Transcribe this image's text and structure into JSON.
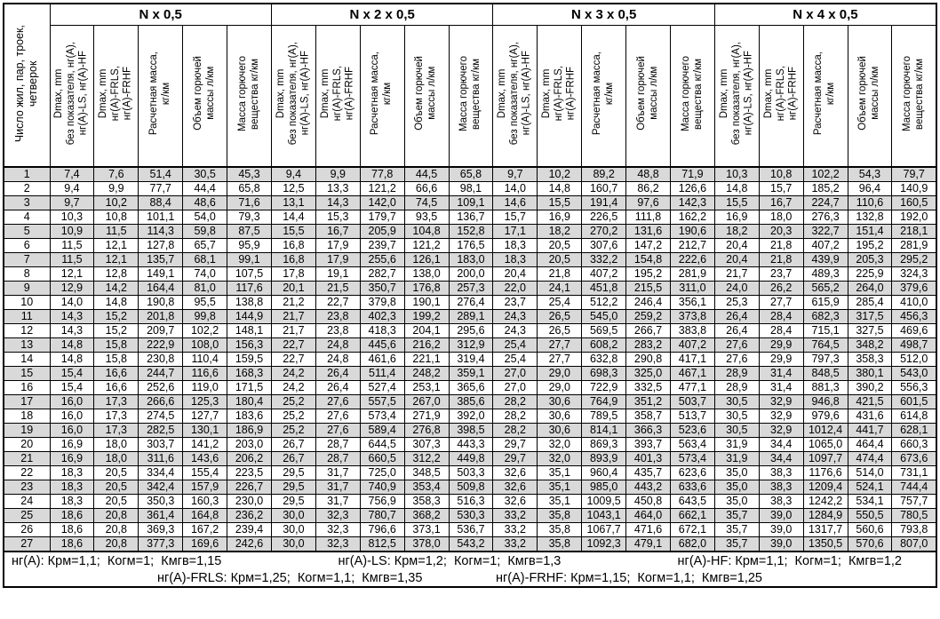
{
  "colors": {
    "row_shade": "#d9d9d9",
    "border": "#000000"
  },
  "table": {
    "corner_header": "Число жил, пар, троек,\nчетверок",
    "groups": [
      "N x 0,5",
      "N x 2 x 0,5",
      "N x 3 x 0,5",
      "N x 4 x 0,5"
    ],
    "sub_headers": [
      "Dmax, mm\nбез показателя, нг(А),\nнг(А)-LS, нг(А)-HF",
      "Dmax, mm\nнг(А)-FRLS,\nнг(А)-FRHF",
      "Расчетная масса,\nкг/км",
      "Объем горючей\nмассы л/км",
      "Масса горючего\nвещества кг/км"
    ],
    "rows": [
      [
        "1",
        "7,4",
        "7,6",
        "51,4",
        "30,5",
        "45,3",
        "9,4",
        "9,9",
        "77,8",
        "44,5",
        "65,8",
        "9,7",
        "10,2",
        "89,2",
        "48,8",
        "71,9",
        "10,3",
        "10,8",
        "102,2",
        "54,3",
        "79,7"
      ],
      [
        "2",
        "9,4",
        "9,9",
        "77,7",
        "44,4",
        "65,8",
        "12,5",
        "13,3",
        "121,2",
        "66,6",
        "98,1",
        "14,0",
        "14,8",
        "160,7",
        "86,2",
        "126,6",
        "14,8",
        "15,7",
        "185,2",
        "96,4",
        "140,9"
      ],
      [
        "3",
        "9,7",
        "10,2",
        "88,4",
        "48,6",
        "71,6",
        "13,1",
        "14,3",
        "142,0",
        "74,5",
        "109,1",
        "14,6",
        "15,5",
        "191,4",
        "97,6",
        "142,3",
        "15,5",
        "16,7",
        "224,7",
        "110,6",
        "160,5"
      ],
      [
        "4",
        "10,3",
        "10,8",
        "101,1",
        "54,0",
        "79,3",
        "14,4",
        "15,3",
        "179,7",
        "93,5",
        "136,7",
        "15,7",
        "16,9",
        "226,5",
        "111,8",
        "162,2",
        "16,9",
        "18,0",
        "276,3",
        "132,8",
        "192,0"
      ],
      [
        "5",
        "10,9",
        "11,5",
        "114,3",
        "59,8",
        "87,5",
        "15,5",
        "16,7",
        "205,9",
        "104,8",
        "152,8",
        "17,1",
        "18,2",
        "270,2",
        "131,6",
        "190,6",
        "18,2",
        "20,3",
        "322,7",
        "151,4",
        "218,1"
      ],
      [
        "6",
        "11,5",
        "12,1",
        "127,8",
        "65,7",
        "95,9",
        "16,8",
        "17,9",
        "239,7",
        "121,2",
        "176,5",
        "18,3",
        "20,5",
        "307,6",
        "147,2",
        "212,7",
        "20,4",
        "21,8",
        "407,2",
        "195,2",
        "281,9"
      ],
      [
        "7",
        "11,5",
        "12,1",
        "135,7",
        "68,1",
        "99,1",
        "16,8",
        "17,9",
        "255,6",
        "126,1",
        "183,0",
        "18,3",
        "20,5",
        "332,2",
        "154,8",
        "222,6",
        "20,4",
        "21,8",
        "439,9",
        "205,3",
        "295,2"
      ],
      [
        "8",
        "12,1",
        "12,8",
        "149,1",
        "74,0",
        "107,5",
        "17,8",
        "19,1",
        "282,7",
        "138,0",
        "200,0",
        "20,4",
        "21,8",
        "407,2",
        "195,2",
        "281,9",
        "21,7",
        "23,7",
        "489,3",
        "225,9",
        "324,3"
      ],
      [
        "9",
        "12,9",
        "14,2",
        "164,4",
        "81,0",
        "117,6",
        "20,1",
        "21,5",
        "350,7",
        "176,8",
        "257,3",
        "22,0",
        "24,1",
        "451,8",
        "215,5",
        "311,0",
        "24,0",
        "26,2",
        "565,2",
        "264,0",
        "379,6"
      ],
      [
        "10",
        "14,0",
        "14,8",
        "190,8",
        "95,5",
        "138,8",
        "21,2",
        "22,7",
        "379,8",
        "190,1",
        "276,4",
        "23,7",
        "25,4",
        "512,2",
        "246,4",
        "356,1",
        "25,3",
        "27,7",
        "615,9",
        "285,4",
        "410,0"
      ],
      [
        "11",
        "14,3",
        "15,2",
        "201,8",
        "99,8",
        "144,9",
        "21,7",
        "23,8",
        "402,3",
        "199,2",
        "289,1",
        "24,3",
        "26,5",
        "545,0",
        "259,2",
        "373,8",
        "26,4",
        "28,4",
        "682,3",
        "317,5",
        "456,3"
      ],
      [
        "12",
        "14,3",
        "15,2",
        "209,7",
        "102,2",
        "148,1",
        "21,7",
        "23,8",
        "418,3",
        "204,1",
        "295,6",
        "24,3",
        "26,5",
        "569,5",
        "266,7",
        "383,8",
        "26,4",
        "28,4",
        "715,1",
        "327,5",
        "469,6"
      ],
      [
        "13",
        "14,8",
        "15,8",
        "222,9",
        "108,0",
        "156,3",
        "22,7",
        "24,8",
        "445,6",
        "216,2",
        "312,9",
        "25,4",
        "27,7",
        "608,2",
        "283,2",
        "407,2",
        "27,6",
        "29,9",
        "764,5",
        "348,2",
        "498,7"
      ],
      [
        "14",
        "14,8",
        "15,8",
        "230,8",
        "110,4",
        "159,5",
        "22,7",
        "24,8",
        "461,6",
        "221,1",
        "319,4",
        "25,4",
        "27,7",
        "632,8",
        "290,8",
        "417,1",
        "27,6",
        "29,9",
        "797,3",
        "358,3",
        "512,0"
      ],
      [
        "15",
        "15,4",
        "16,6",
        "244,7",
        "116,6",
        "168,3",
        "24,2",
        "26,4",
        "511,4",
        "248,2",
        "359,1",
        "27,0",
        "29,0",
        "698,3",
        "325,0",
        "467,1",
        "28,9",
        "31,4",
        "848,5",
        "380,1",
        "543,0"
      ],
      [
        "16",
        "15,4",
        "16,6",
        "252,6",
        "119,0",
        "171,5",
        "24,2",
        "26,4",
        "527,4",
        "253,1",
        "365,6",
        "27,0",
        "29,0",
        "722,9",
        "332,5",
        "477,1",
        "28,9",
        "31,4",
        "881,3",
        "390,2",
        "556,3"
      ],
      [
        "17",
        "16,0",
        "17,3",
        "266,6",
        "125,3",
        "180,4",
        "25,2",
        "27,6",
        "557,5",
        "267,0",
        "385,6",
        "28,2",
        "30,6",
        "764,9",
        "351,2",
        "503,7",
        "30,5",
        "32,9",
        "946,8",
        "421,5",
        "601,5"
      ],
      [
        "18",
        "16,0",
        "17,3",
        "274,5",
        "127,7",
        "183,6",
        "25,2",
        "27,6",
        "573,4",
        "271,9",
        "392,0",
        "28,2",
        "30,6",
        "789,5",
        "358,7",
        "513,7",
        "30,5",
        "32,9",
        "979,6",
        "431,6",
        "614,8"
      ],
      [
        "19",
        "16,0",
        "17,3",
        "282,5",
        "130,1",
        "186,9",
        "25,2",
        "27,6",
        "589,4",
        "276,8",
        "398,5",
        "28,2",
        "30,6",
        "814,1",
        "366,3",
        "523,6",
        "30,5",
        "32,9",
        "1012,4",
        "441,7",
        "628,1"
      ],
      [
        "20",
        "16,9",
        "18,0",
        "303,7",
        "141,2",
        "203,0",
        "26,7",
        "28,7",
        "644,5",
        "307,3",
        "443,3",
        "29,7",
        "32,0",
        "869,3",
        "393,7",
        "563,4",
        "31,9",
        "34,4",
        "1065,0",
        "464,4",
        "660,3"
      ],
      [
        "21",
        "16,9",
        "18,0",
        "311,6",
        "143,6",
        "206,2",
        "26,7",
        "28,7",
        "660,5",
        "312,2",
        "449,8",
        "29,7",
        "32,0",
        "893,9",
        "401,3",
        "573,4",
        "31,9",
        "34,4",
        "1097,7",
        "474,4",
        "673,6"
      ],
      [
        "22",
        "18,3",
        "20,5",
        "334,4",
        "155,4",
        "223,5",
        "29,5",
        "31,7",
        "725,0",
        "348,5",
        "503,3",
        "32,6",
        "35,1",
        "960,4",
        "435,7",
        "623,6",
        "35,0",
        "38,3",
        "1176,6",
        "514,0",
        "731,1"
      ],
      [
        "23",
        "18,3",
        "20,5",
        "342,4",
        "157,9",
        "226,7",
        "29,5",
        "31,7",
        "740,9",
        "353,4",
        "509,8",
        "32,6",
        "35,1",
        "985,0",
        "443,2",
        "633,6",
        "35,0",
        "38,3",
        "1209,4",
        "524,1",
        "744,4"
      ],
      [
        "24",
        "18,3",
        "20,5",
        "350,3",
        "160,3",
        "230,0",
        "29,5",
        "31,7",
        "756,9",
        "358,3",
        "516,3",
        "32,6",
        "35,1",
        "1009,5",
        "450,8",
        "643,5",
        "35,0",
        "38,3",
        "1242,2",
        "534,1",
        "757,7"
      ],
      [
        "25",
        "18,6",
        "20,8",
        "361,4",
        "164,8",
        "236,2",
        "30,0",
        "32,3",
        "780,7",
        "368,2",
        "530,3",
        "33,2",
        "35,8",
        "1043,1",
        "464,0",
        "662,1",
        "35,7",
        "39,0",
        "1284,9",
        "550,5",
        "780,5"
      ],
      [
        "26",
        "18,6",
        "20,8",
        "369,3",
        "167,2",
        "239,4",
        "30,0",
        "32,3",
        "796,6",
        "373,1",
        "536,7",
        "33,2",
        "35,8",
        "1067,7",
        "471,6",
        "672,1",
        "35,7",
        "39,0",
        "1317,7",
        "560,6",
        "793,8"
      ],
      [
        "27",
        "18,6",
        "20,8",
        "377,3",
        "169,6",
        "242,6",
        "30,0",
        "32,3",
        "812,5",
        "378,0",
        "543,2",
        "33,2",
        "35,8",
        "1092,3",
        "479,1",
        "682,0",
        "35,7",
        "39,0",
        "1350,5",
        "570,6",
        "807,0"
      ]
    ]
  },
  "footer": {
    "line1": [
      "нг(А): Крм=1,1;  Когм=1;  Кмгв=1,15",
      "нг(А)-LS: Крм=1,2;  Когм=1;  Кмгв=1,3",
      "нг(А)-HF: Крм=1,1;  Когм=1;  Кмгв=1,2"
    ],
    "line2": [
      "нг(А)-FRLS: Крм=1,25;  Когм=1,1;  Кмгв=1,35",
      "нг(А)-FRHF: Крм=1,15;  Когм=1,1;  Кмгв=1,25"
    ]
  }
}
